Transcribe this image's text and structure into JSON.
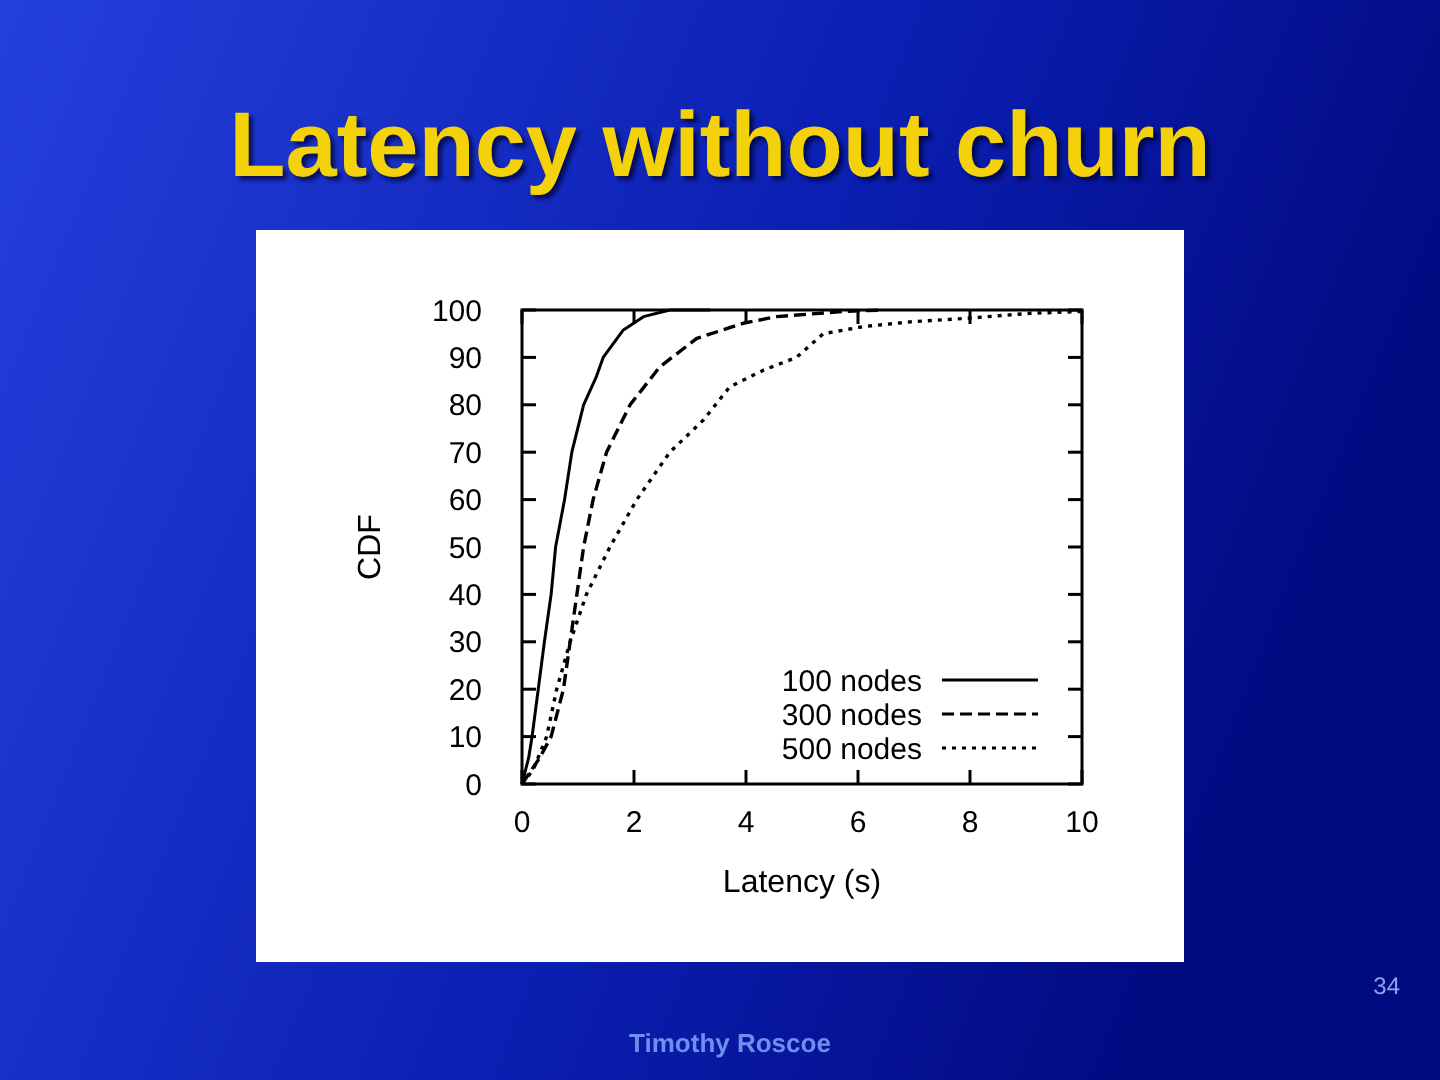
{
  "chart_data": {
    "type": "line",
    "title": "Latency without churn",
    "xlabel": "Latency (s)",
    "ylabel": "CDF",
    "xlim": [
      0,
      10
    ],
    "ylim": [
      0,
      100
    ],
    "xticks": [
      0,
      2,
      4,
      6,
      8,
      10
    ],
    "yticks": [
      0,
      10,
      20,
      30,
      40,
      50,
      60,
      70,
      80,
      90,
      100
    ],
    "legend": "bottom right",
    "series": [
      {
        "name": "100 nodes",
        "color": "#000000",
        "line_style": "solid",
        "x": [
          0,
          0.12,
          0.18,
          0.29,
          0.4,
          0.52,
          0.6,
          0.76,
          0.89,
          1.1,
          1.33,
          1.45,
          1.81,
          2.17,
          2.64,
          3.36
        ],
        "values": [
          0,
          5.6,
          10,
          20,
          30,
          40,
          50,
          60,
          70,
          80,
          86,
          90,
          95.8,
          98.6,
          100,
          100
        ]
      },
      {
        "name": "300 nodes",
        "color": "#000000",
        "line_style": "dashed",
        "x": [
          0,
          0.32,
          0.52,
          0.74,
          0.86,
          0.98,
          1.1,
          1.27,
          1.51,
          1.93,
          2.46,
          3.12,
          3.95,
          4.55,
          5.74,
          6.45
        ],
        "values": [
          0,
          5.6,
          10,
          20,
          30,
          40,
          50,
          60,
          70,
          80,
          88,
          94,
          97.2,
          98.6,
          99.7,
          100
        ]
      },
      {
        "name": "500 nodes",
        "color": "#000000",
        "line_style": "dotted",
        "x": [
          0,
          0.2,
          0.44,
          0.62,
          0.86,
          1.15,
          1.57,
          2.05,
          2.64,
          3.24,
          3.71,
          4.31,
          4.9,
          5.38,
          6.1,
          6.93,
          8.0,
          9.07,
          10
        ],
        "values": [
          0,
          3,
          10,
          20,
          30,
          40,
          50,
          60,
          70,
          76.8,
          83.8,
          87.3,
          90,
          95,
          96.5,
          97.5,
          98.3,
          99.3,
          99.7
        ]
      }
    ],
    "annotations": [
      "Timothy Roscoe",
      "34"
    ]
  }
}
